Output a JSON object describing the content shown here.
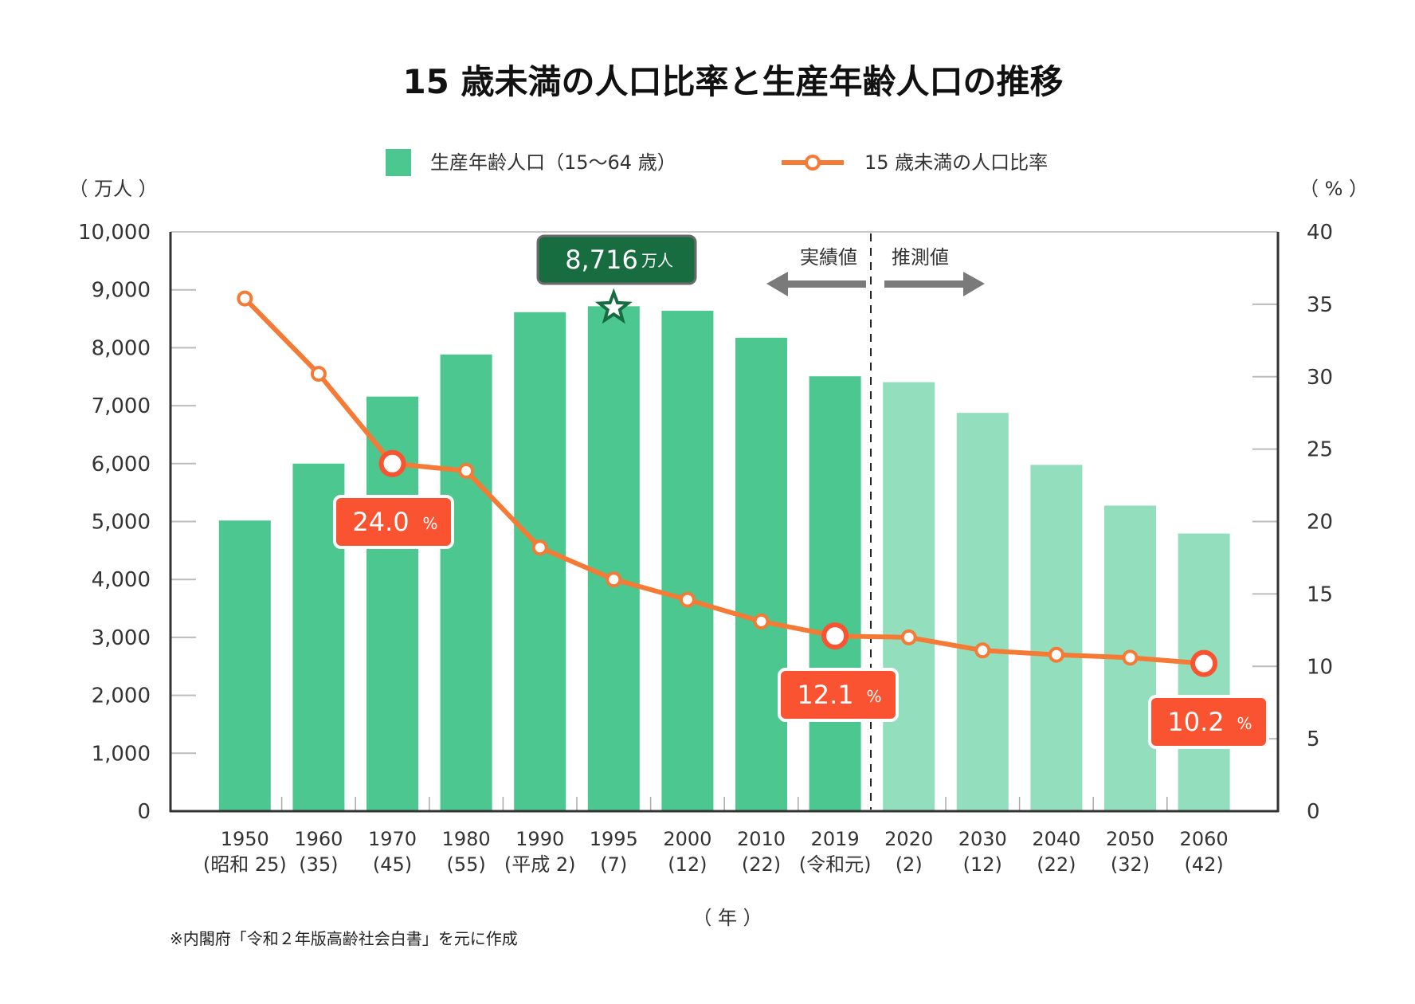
{
  "chart_data": {
    "type": "bar",
    "title": "15 歳未満の人口比率と生産年齢人口の推移",
    "legend": {
      "placement": "top-center",
      "bar_label": "生産年齢人口（15〜64 歳）",
      "line_label": "15 歳未満の人口比率"
    },
    "categories": [
      "1950",
      "1960",
      "1970",
      "1980",
      "1990",
      "1995",
      "2000",
      "2010",
      "2019",
      "2020",
      "2030",
      "2040",
      "2050",
      "2060"
    ],
    "category_sublabels": [
      "(昭和 25)",
      "(35)",
      "(45)",
      "(55)",
      "(平成 2)",
      "(7)",
      "(12)",
      "(22)",
      "(令和元)",
      "(2)",
      "(12)",
      "(22)",
      "(32)",
      "(42)"
    ],
    "xlabel": "（ 年 ）",
    "ylabel_left": "（ 万人 ）",
    "ylabel_right": "（ % ）",
    "y_left": {
      "range": [
        0,
        10000
      ],
      "ticks": [
        0,
        1000,
        2000,
        3000,
        4000,
        5000,
        6000,
        7000,
        8000,
        9000,
        10000
      ],
      "tick_labels": [
        "0",
        "1,000",
        "2,000",
        "3,000",
        "4,000",
        "5,000",
        "6,000",
        "7,000",
        "8,000",
        "9,000",
        "10,000"
      ]
    },
    "y_right": {
      "range": [
        0,
        40
      ],
      "ticks": [
        0,
        5,
        10,
        15,
        20,
        25,
        30,
        35,
        40
      ],
      "tick_labels": [
        "0",
        "5",
        "10",
        "15",
        "20",
        "25",
        "30",
        "35",
        "40"
      ]
    },
    "grid": false,
    "series": [
      {
        "name": "生産年齢人口（15〜64 歳）",
        "type": "bar",
        "axis": "left",
        "unit": "万人",
        "values": [
          5017,
          6000,
          7157,
          7883,
          8614,
          8716,
          8638,
          8173,
          7507,
          7406,
          6875,
          5978,
          5275,
          4793
        ],
        "projected_from_index": 9
      },
      {
        "name": "15 歳未満の人口比率",
        "type": "line",
        "axis": "right",
        "unit": "%",
        "values": [
          35.4,
          30.2,
          24.0,
          23.5,
          18.2,
          16.0,
          14.6,
          13.1,
          12.1,
          12.0,
          11.1,
          10.8,
          10.6,
          10.2
        ],
        "highlight_indices": [
          2,
          8,
          13
        ]
      }
    ],
    "annotations": [
      {
        "type": "peak-callout",
        "index": 5,
        "value": "8,716",
        "unit": "万人",
        "marker": "star"
      },
      {
        "type": "rate-callout",
        "index": 2,
        "value": "24.0",
        "unit": "%"
      },
      {
        "type": "rate-callout",
        "index": 8,
        "value": "12.1",
        "unit": "%"
      },
      {
        "type": "rate-callout",
        "index": 13,
        "value": "10.2",
        "unit": "%"
      }
    ],
    "divider": {
      "between_indices": [
        8,
        9
      ],
      "left_label": "実績値",
      "right_label": "推測値"
    }
  },
  "note": "※内閣府「令和２年版高齢社会白書」を元に作成",
  "colors": {
    "bar_actual": "#4bc78f",
    "bar_projected": "#93dfbd",
    "line": "#f47a35",
    "highlight": "#fa5331",
    "peak_box": "#186d40",
    "peak_border": "#6a6a6a",
    "arrow": "#7a7a7a",
    "axis": "#333333",
    "tick": "#bbbbbb"
  }
}
